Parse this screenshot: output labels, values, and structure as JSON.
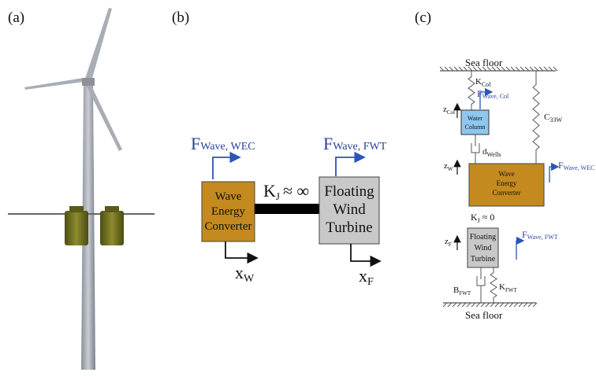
{
  "panels": {
    "a": {
      "label": "(a)"
    },
    "b": {
      "label": "(b)",
      "wec": {
        "force": {
          "symbol": "F",
          "subscript": "Wave, WEC"
        },
        "block": [
          "Wave",
          "Energy",
          "Converter"
        ],
        "displacement": {
          "symbol": "x",
          "subscript": "W"
        }
      },
      "joint": {
        "symbol": "K",
        "subscript": "J",
        "relation": "≈ ∞"
      },
      "fwt": {
        "force": {
          "symbol": "F",
          "subscript": "Wave, FWT"
        },
        "block": [
          "Floating",
          "Wind",
          "Turbine"
        ],
        "displacement": {
          "symbol": "x",
          "subscript": "F"
        }
      }
    },
    "c": {
      "label": "(c)",
      "top_floor": "Sea floor",
      "column_stiffness": {
        "symbol": "K",
        "subscript": "Col"
      },
      "column_force": {
        "symbol": "F",
        "subscript": "Wave, Col"
      },
      "column_displacement": {
        "symbol": "z",
        "subscript": "Col"
      },
      "column_block": [
        "Water",
        "Column"
      ],
      "hydrostatic": {
        "symbol": "C",
        "subscript": "33W"
      },
      "damper": {
        "symbol": "d",
        "subscript": "Wells"
      },
      "wec_displacement": {
        "symbol": "z",
        "subscript": "W"
      },
      "wec_block": [
        "Wave",
        "Energy",
        "Converter"
      ],
      "wec_force": {
        "symbol": "F",
        "subscript": "Wave, WEC"
      },
      "joint": {
        "symbol": "K",
        "subscript": "J",
        "relation": "≈ 0"
      },
      "fwt_displacement": {
        "symbol": "z",
        "subscript": "F"
      },
      "fwt_block": [
        "Floating",
        "Wind",
        "Turbine"
      ],
      "fwt_force": {
        "symbol": "F",
        "subscript": "Wave, FWT"
      },
      "fwt_damping": {
        "symbol": "B",
        "subscript": "FWT"
      },
      "fwt_stiffness": {
        "symbol": "K",
        "subscript": "FWT"
      },
      "bottom_floor": "Sea floor"
    }
  }
}
